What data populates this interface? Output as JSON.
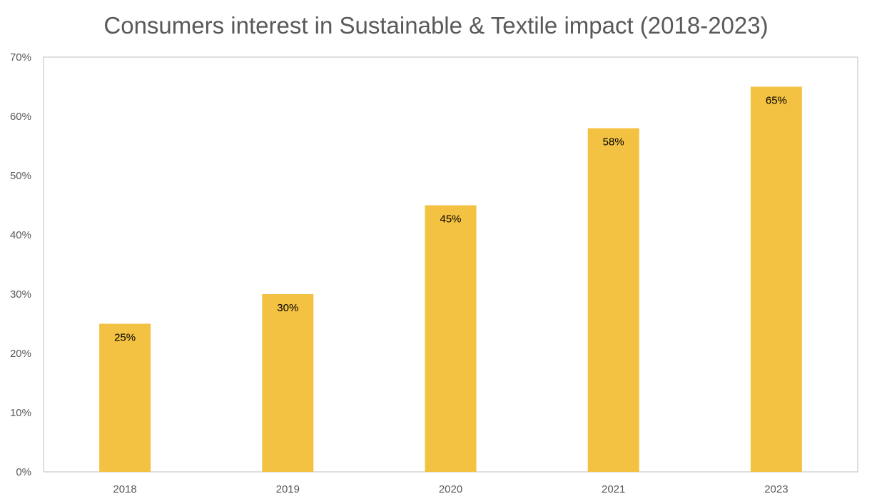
{
  "chart_data": {
    "type": "bar",
    "title": "Consumers interest in Sustainable & Textile impact (2018-2023)",
    "xlabel": "",
    "ylabel": "",
    "categories": [
      "2018",
      "2019",
      "2020",
      "2021",
      "2023"
    ],
    "values": [
      25,
      30,
      45,
      58,
      65
    ],
    "value_labels": [
      "25%",
      "30%",
      "45%",
      "58%",
      "65%"
    ],
    "ylim": [
      0,
      70
    ],
    "yticks": [
      0,
      10,
      20,
      30,
      40,
      50,
      60,
      70
    ],
    "ytick_labels": [
      "0%",
      "10%",
      "20%",
      "30%",
      "40%",
      "50%",
      "60%",
      "70%"
    ],
    "grid": false,
    "legend": "none",
    "bar_color": "#F4C242",
    "frame_color": "#BFBFBF"
  }
}
